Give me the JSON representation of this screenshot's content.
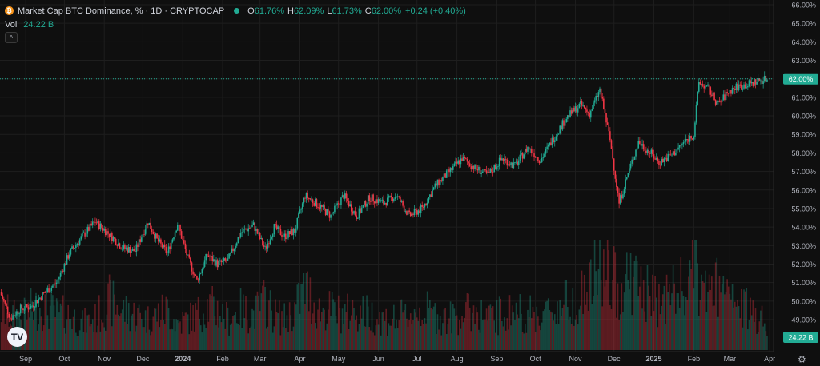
{
  "header": {
    "coin_letter": "₿",
    "title": "Market Cap BTC Dominance, % · 1D · CRYPTOCAP",
    "ohlc": [
      {
        "key": "O",
        "value": "61.76%"
      },
      {
        "key": "H",
        "value": "62.09%"
      },
      {
        "key": "L",
        "value": "61.73%"
      },
      {
        "key": "C",
        "value": "62.00%"
      }
    ],
    "change": "+0.24 (+0.40%)",
    "vol_label": "Vol",
    "vol_value": "24.22 B",
    "collapse_glyph": "^"
  },
  "logo_text": "TV",
  "settings_icon": "gear-icon",
  "colors": {
    "up": "#22ab94",
    "down": "#f23645",
    "background": "#0f0f0f",
    "grid": "#1e1e1e",
    "text": "#d1d4dc",
    "last_price_tag": "#22ab94",
    "volume_tag": "#22ab94"
  },
  "chart_data": {
    "type": "line",
    "title": "Market Cap BTC Dominance, % · 1D · CRYPTOCAP",
    "xlabel": "",
    "ylabel": "",
    "y_unit": "%",
    "ylim": [
      48.2,
      66.0
    ],
    "y_ticks": [
      "66.00%",
      "65.00%",
      "64.00%",
      "63.00%",
      "62.00%",
      "61.00%",
      "60.00%",
      "59.00%",
      "58.00%",
      "57.00%",
      "56.00%",
      "55.00%",
      "54.00%",
      "53.00%",
      "52.00%",
      "51.00%",
      "50.00%",
      "49.00%"
    ],
    "x_ticks": [
      "Sep",
      "Oct",
      "Nov",
      "Dec",
      "2024",
      "Feb",
      "Mar",
      "Apr",
      "May",
      "Jun",
      "Jul",
      "Aug",
      "Sep",
      "Oct",
      "Nov",
      "Dec",
      "2025",
      "Feb",
      "Mar",
      "Apr"
    ],
    "x_tick_dates": [
      "2023-09-01",
      "2023-10-01",
      "2023-11-01",
      "2023-12-01",
      "2024-01-01",
      "2024-02-01",
      "2024-03-01",
      "2024-04-01",
      "2024-05-01",
      "2024-06-01",
      "2024-07-01",
      "2024-08-01",
      "2024-09-01",
      "2024-10-01",
      "2024-11-01",
      "2024-12-01",
      "2025-01-01",
      "2025-02-01",
      "2025-03-01",
      "2025-04-01"
    ],
    "xlim": [
      "2023-08-12",
      "2025-04-04"
    ],
    "grid": true,
    "legend": "top-left",
    "last_price_label": "62.00%",
    "volume_label": "24.22 B",
    "series": [
      {
        "name": "Market Cap BTC Dominance, %",
        "x": [
          "2023-08-12",
          "2023-08-20",
          "2023-08-28",
          "2023-09-05",
          "2023-09-15",
          "2023-09-25",
          "2023-10-05",
          "2023-10-15",
          "2023-10-25",
          "2023-11-05",
          "2023-11-15",
          "2023-11-25",
          "2023-12-05",
          "2023-12-12",
          "2023-12-20",
          "2023-12-28",
          "2024-01-05",
          "2024-01-12",
          "2024-01-20",
          "2024-01-28",
          "2024-02-05",
          "2024-02-15",
          "2024-02-25",
          "2024-03-05",
          "2024-03-12",
          "2024-03-20",
          "2024-03-28",
          "2024-04-05",
          "2024-04-15",
          "2024-04-25",
          "2024-05-05",
          "2024-05-15",
          "2024-05-25",
          "2024-06-05",
          "2024-06-15",
          "2024-06-25",
          "2024-07-05",
          "2024-07-15",
          "2024-07-25",
          "2024-08-05",
          "2024-08-15",
          "2024-08-25",
          "2024-09-05",
          "2024-09-15",
          "2024-09-25",
          "2024-10-05",
          "2024-10-15",
          "2024-10-25",
          "2024-11-05",
          "2024-11-12",
          "2024-11-20",
          "2024-11-28",
          "2024-12-05",
          "2024-12-12",
          "2024-12-20",
          "2024-12-28",
          "2025-01-05",
          "2025-01-15",
          "2025-01-25",
          "2025-02-01",
          "2025-02-05",
          "2025-02-12",
          "2025-02-20",
          "2025-02-28",
          "2025-03-07",
          "2025-03-15",
          "2025-03-23",
          "2025-03-30"
        ],
        "values": [
          50.5,
          49.1,
          49.6,
          49.7,
          50.4,
          51.0,
          52.6,
          53.5,
          54.3,
          53.6,
          52.9,
          52.7,
          54.3,
          53.3,
          52.6,
          54.2,
          52.3,
          51.1,
          52.5,
          52.0,
          52.2,
          53.7,
          54.1,
          52.8,
          54.0,
          53.5,
          53.8,
          55.7,
          55.2,
          54.6,
          55.7,
          54.6,
          55.6,
          55.3,
          55.7,
          54.6,
          55.0,
          56.2,
          56.9,
          57.7,
          57.2,
          56.8,
          57.7,
          57.3,
          58.3,
          57.6,
          58.8,
          59.9,
          60.6,
          60.1,
          61.4,
          58.7,
          55.3,
          56.9,
          58.6,
          58.1,
          57.5,
          57.9,
          58.6,
          59.0,
          61.8,
          61.5,
          60.6,
          61.3,
          61.6,
          61.7,
          61.9,
          62.0
        ]
      }
    ],
    "volume_levels": [
      0.45,
      0.4,
      0.35,
      0.45,
      0.5,
      0.4,
      0.4,
      0.3,
      0.35,
      0.55,
      0.45,
      0.4,
      0.35,
      0.4,
      0.45,
      0.3,
      0.35,
      0.4,
      0.5,
      0.45,
      0.35,
      0.45,
      0.4,
      0.55,
      0.4,
      0.35,
      0.45,
      0.7,
      0.45,
      0.45,
      0.4,
      0.45,
      0.4,
      0.35,
      0.35,
      0.4,
      0.45,
      0.4,
      0.35,
      0.4,
      0.45,
      0.35,
      0.4,
      0.45,
      0.4,
      0.4,
      0.45,
      0.55,
      0.6,
      0.7,
      0.95,
      0.8,
      0.7,
      0.85,
      0.75,
      0.6,
      0.55,
      0.65,
      0.7,
      0.9,
      0.75,
      0.65,
      0.7,
      0.55,
      0.5,
      0.45,
      0.4,
      0.35
    ]
  }
}
